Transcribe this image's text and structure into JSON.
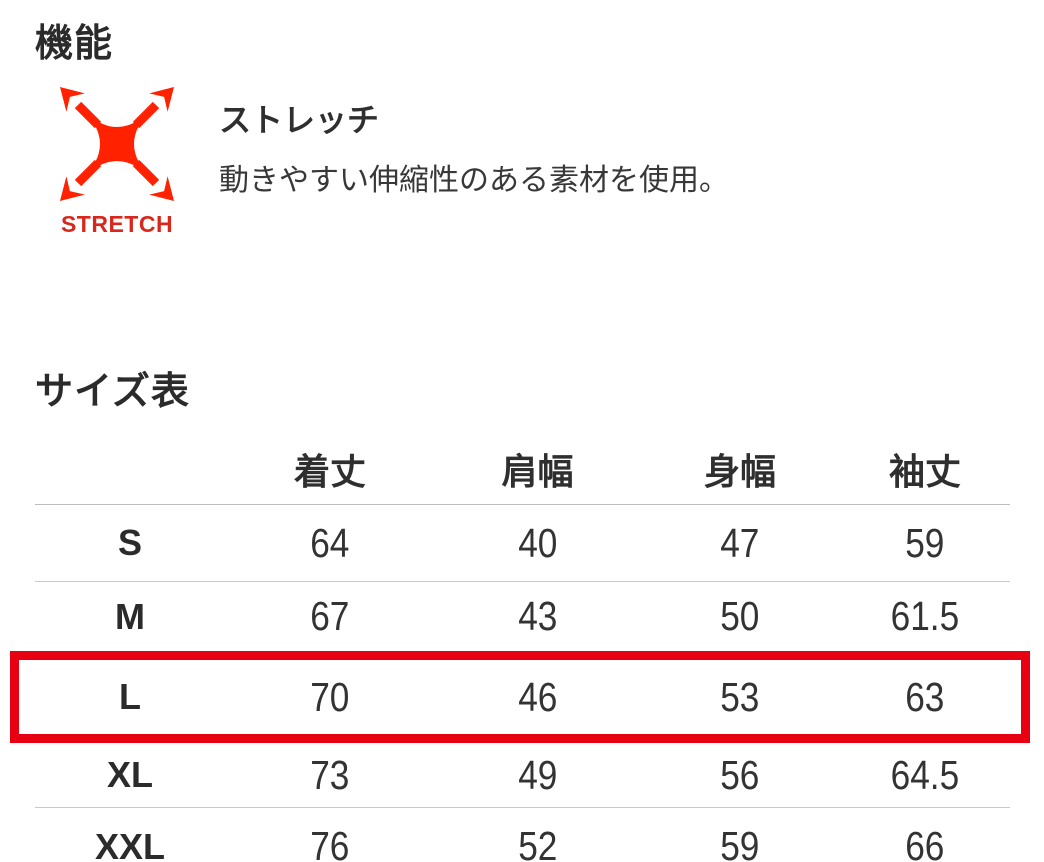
{
  "features_section": {
    "title": "機能",
    "feature": {
      "icon": "stretch-icon",
      "icon_caption": "STRETCH",
      "name": "ストレッチ",
      "description": "動きやすい伸縮性のある素材を使用。"
    }
  },
  "size_chart": {
    "title": "サイズ表",
    "columns": [
      "着丈",
      "肩幅",
      "身幅",
      "袖丈"
    ],
    "rows": [
      {
        "size": "S",
        "values": [
          "64",
          "40",
          "47",
          "59"
        ],
        "highlighted": false
      },
      {
        "size": "M",
        "values": [
          "67",
          "43",
          "50",
          "61.5"
        ],
        "highlighted": false
      },
      {
        "size": "L",
        "values": [
          "70",
          "46",
          "53",
          "63"
        ],
        "highlighted": true
      },
      {
        "size": "XL",
        "values": [
          "73",
          "49",
          "56",
          "64.5"
        ],
        "highlighted": false
      },
      {
        "size": "XXL",
        "values": [
          "76",
          "52",
          "59",
          "66"
        ],
        "highlighted": false
      }
    ],
    "highlighted_size": "L"
  },
  "colors": {
    "icon_red": "#ff2100",
    "highlight_red": "#e60012",
    "text_dark": "#2e2e2e",
    "divider": "#c9c9c9"
  }
}
